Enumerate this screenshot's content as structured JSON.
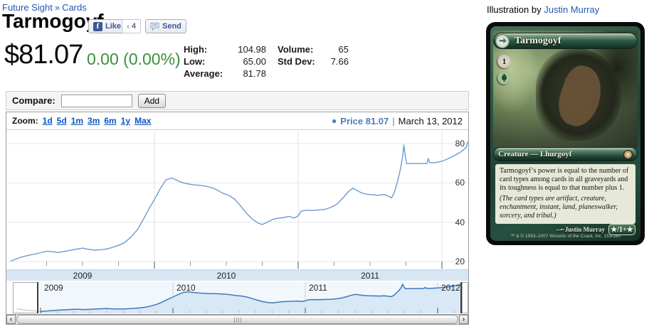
{
  "breadcrumb": {
    "set": "Future Sight",
    "separator": "»",
    "page": "Cards"
  },
  "header": {
    "title": "Tarmogoyf",
    "like_label": "Like",
    "like_count": "4",
    "send_label": "Send"
  },
  "price": {
    "current": "$81.07",
    "change": "0.00 (0.00%)",
    "change_color": "#3a8f3a"
  },
  "stats": {
    "high_label": "High:",
    "high": "104.98",
    "low_label": "Low:",
    "low": "65.00",
    "average_label": "Average:",
    "average": "81.78",
    "volume_label": "Volume:",
    "volume": "65",
    "stddev_label": "Std Dev:",
    "stddev": "7.66"
  },
  "compare": {
    "label": "Compare:",
    "input_value": "",
    "add_label": "Add"
  },
  "chart_header": {
    "zoom_label": "Zoom:",
    "ranges": [
      "1d",
      "5d",
      "1m",
      "3m",
      "6m",
      "1y",
      "Max"
    ],
    "legend_label": "Price",
    "legend_value": "81.07",
    "separator": "|",
    "date": "March 13, 2012",
    "legend_color": "#4a7ebb"
  },
  "chart_data": {
    "type": "line",
    "x_range": [
      2009.0,
      2012.18
    ],
    "ylim": [
      15,
      85
    ],
    "y_ticks": [
      20,
      40,
      60,
      80
    ],
    "x_axis_labels": [
      "2009",
      "2010",
      "2011"
    ],
    "navigator_labels": [
      "2009",
      "2010",
      "2011",
      "2012"
    ],
    "grid": true,
    "legend_position": "top-right",
    "current_price": 81.07,
    "current_date": "March 13, 2012",
    "series": [
      {
        "name": "Price",
        "color": "#6b9bd3",
        "points": [
          [
            2009.0,
            20.2
          ],
          [
            2009.04,
            21.3
          ],
          [
            2009.08,
            22.4
          ],
          [
            2009.13,
            23.2
          ],
          [
            2009.17,
            23.8
          ],
          [
            2009.21,
            24.5
          ],
          [
            2009.25,
            25.2
          ],
          [
            2009.29,
            25.0
          ],
          [
            2009.33,
            24.6
          ],
          [
            2009.38,
            25.2
          ],
          [
            2009.42,
            25.8
          ],
          [
            2009.46,
            26.3
          ],
          [
            2009.5,
            26.8
          ],
          [
            2009.54,
            26.2
          ],
          [
            2009.58,
            25.8
          ],
          [
            2009.63,
            26.0
          ],
          [
            2009.67,
            26.4
          ],
          [
            2009.71,
            27.2
          ],
          [
            2009.75,
            28.2
          ],
          [
            2009.79,
            29.5
          ],
          [
            2009.83,
            32.0
          ],
          [
            2009.88,
            36.0
          ],
          [
            2009.92,
            41.0
          ],
          [
            2009.96,
            46.5
          ],
          [
            2010.0,
            51.5
          ],
          [
            2010.04,
            57.0
          ],
          [
            2010.08,
            61.5
          ],
          [
            2010.12,
            62.5
          ],
          [
            2010.15,
            61.5
          ],
          [
            2010.19,
            60.2
          ],
          [
            2010.23,
            59.5
          ],
          [
            2010.27,
            59.0
          ],
          [
            2010.31,
            58.8
          ],
          [
            2010.35,
            58.4
          ],
          [
            2010.4,
            57.6
          ],
          [
            2010.44,
            56.2
          ],
          [
            2010.48,
            54.6
          ],
          [
            2010.52,
            53.6
          ],
          [
            2010.56,
            51.6
          ],
          [
            2010.6,
            48.2
          ],
          [
            2010.64,
            44.6
          ],
          [
            2010.68,
            41.6
          ],
          [
            2010.72,
            39.6
          ],
          [
            2010.75,
            38.8
          ],
          [
            2010.79,
            40.2
          ],
          [
            2010.83,
            41.6
          ],
          [
            2010.87,
            42.1
          ],
          [
            2010.9,
            42.4
          ],
          [
            2010.94,
            42.9
          ],
          [
            2010.97,
            42.1
          ],
          [
            2011.0,
            43.2
          ],
          [
            2011.02,
            45.6
          ],
          [
            2011.06,
            46.1
          ],
          [
            2011.1,
            45.9
          ],
          [
            2011.15,
            46.3
          ],
          [
            2011.19,
            46.6
          ],
          [
            2011.23,
            47.6
          ],
          [
            2011.27,
            49.2
          ],
          [
            2011.31,
            52.2
          ],
          [
            2011.35,
            55.6
          ],
          [
            2011.38,
            57.3
          ],
          [
            2011.41,
            56.1
          ],
          [
            2011.44,
            54.9
          ],
          [
            2011.48,
            54.2
          ],
          [
            2011.52,
            53.9
          ],
          [
            2011.56,
            53.7
          ],
          [
            2011.6,
            54.1
          ],
          [
            2011.63,
            53.1
          ],
          [
            2011.65,
            52.3
          ],
          [
            2011.67,
            55.2
          ],
          [
            2011.69,
            60.5
          ],
          [
            2011.71,
            66.5
          ],
          [
            2011.725,
            72.5
          ],
          [
            2011.735,
            79.2
          ],
          [
            2011.745,
            73.5
          ],
          [
            2011.755,
            69.8
          ],
          [
            2011.8,
            69.8
          ],
          [
            2011.85,
            69.8
          ],
          [
            2011.895,
            69.8
          ],
          [
            2011.905,
            72.4
          ],
          [
            2011.915,
            70.2
          ],
          [
            2011.95,
            70.2
          ],
          [
            2012.0,
            71.0
          ],
          [
            2012.04,
            72.2
          ],
          [
            2012.08,
            73.6
          ],
          [
            2012.12,
            75.2
          ],
          [
            2012.15,
            76.8
          ],
          [
            2012.17,
            78.2
          ],
          [
            2012.18,
            81.1
          ]
        ]
      }
    ],
    "navigator_pre_2009": {
      "color": "#bbbbbb",
      "points": [
        [
          2008.82,
          26.5
        ],
        [
          2008.88,
          23.5
        ],
        [
          2008.94,
          21.8
        ],
        [
          2009.0,
          20.6
        ]
      ]
    }
  },
  "icons": {
    "facebook_f": "f",
    "like_count_notch": "‹",
    "legend_bullet": "●",
    "scroll_left": "‹",
    "scroll_right": "›"
  },
  "illustration": {
    "prefix": "Illustration by",
    "artist": "Justin Murray"
  },
  "card": {
    "name": "Tarmogoyf",
    "mana_cost_generic": "1",
    "type_line": "Creature — Lhurgoyf",
    "rules_text": "Tarmogoyf’s power is equal to the number of card types among cards in all graveyards and its toughness is equal to that number plus 1.",
    "reminder_text": "(The card types are artifact, creature, enchantment, instant, land, planeswalker, sorcery, and tribal.)",
    "artist_credit": "Justin Murray",
    "copyright": "™ & © 1993–2007 Wizards of the Coast, Inc. 153/180",
    "power_toughness": "★/1+★"
  }
}
